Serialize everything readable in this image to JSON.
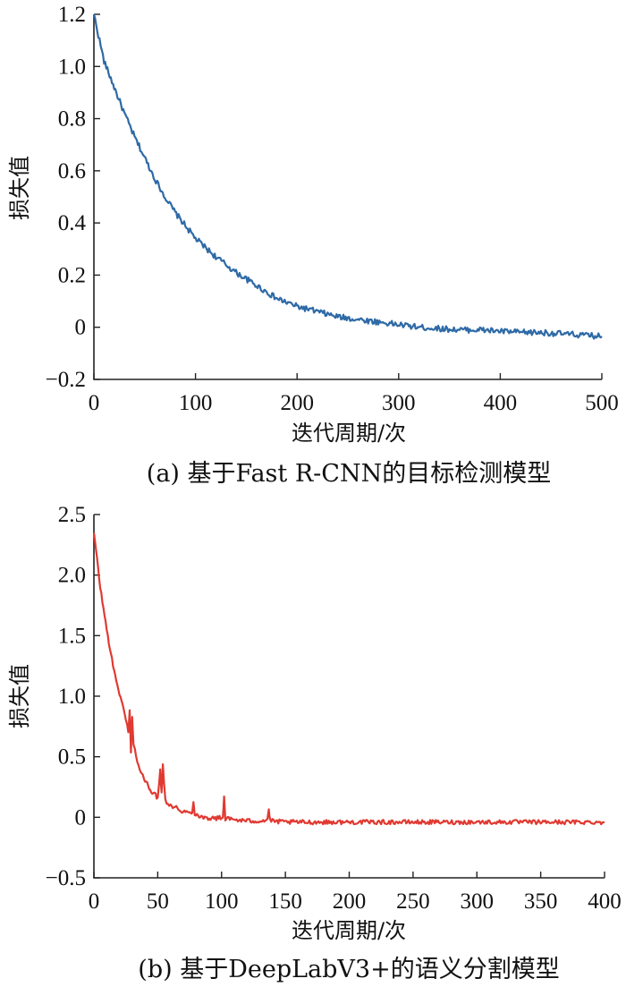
{
  "chart_data": [
    {
      "type": "line",
      "caption": "(a) 基于Fast R-CNN的目标检测模型",
      "xlabel": "迭代周期/次",
      "ylabel": "损失值",
      "xlim": [
        0,
        500
      ],
      "ylim": [
        -0.2,
        1.2
      ],
      "xticks": [
        "0",
        "100",
        "200",
        "300",
        "400",
        "500"
      ],
      "yticks": [
        "1.2",
        "1.0",
        "0.8",
        "0.6",
        "0.4",
        "0.2",
        "0",
        "−0.2"
      ],
      "grid": false,
      "series": [
        {
          "color": "#2e6aa6",
          "x": [
            0,
            10,
            20,
            30,
            40,
            50,
            60,
            70,
            80,
            90,
            100,
            120,
            140,
            160,
            180,
            200,
            220,
            240,
            260,
            280,
            300,
            320,
            340,
            360,
            380,
            400,
            420,
            440,
            460,
            480,
            500
          ],
          "y": [
            1.2,
            1.02,
            0.92,
            0.82,
            0.73,
            0.65,
            0.57,
            0.5,
            0.44,
            0.39,
            0.34,
            0.27,
            0.21,
            0.16,
            0.11,
            0.08,
            0.06,
            0.04,
            0.03,
            0.02,
            0.01,
            0.0,
            -0.005,
            -0.01,
            -0.01,
            -0.015,
            -0.02,
            -0.02,
            -0.025,
            -0.03,
            -0.035
          ]
        }
      ]
    },
    {
      "type": "line",
      "caption": "(b) 基于DeepLabV3+的语义分割模型",
      "xlabel": "迭代周期/次",
      "ylabel": "损失值",
      "xlim": [
        0,
        400
      ],
      "ylim": [
        -0.5,
        2.5
      ],
      "xticks": [
        "0",
        "50",
        "100",
        "150",
        "200",
        "250",
        "300",
        "350",
        "400"
      ],
      "yticks": [
        "2.5",
        "2.0",
        "1.5",
        "1.0",
        "0.5",
        "0",
        "−0.5"
      ],
      "grid": false,
      "series": [
        {
          "color": "#e03a32",
          "x": [
            0,
            5,
            10,
            15,
            20,
            25,
            27,
            28,
            29,
            30,
            31,
            35,
            40,
            45,
            50,
            52,
            53,
            54,
            56,
            60,
            70,
            77,
            78,
            79,
            85,
            95,
            101,
            102,
            103,
            110,
            120,
            130,
            136,
            137,
            138,
            150,
            175,
            200,
            225,
            250,
            275,
            300,
            325,
            350,
            375,
            400
          ],
          "y": [
            2.35,
            1.9,
            1.55,
            1.25,
            1.02,
            0.82,
            0.7,
            0.88,
            0.55,
            0.84,
            0.6,
            0.42,
            0.3,
            0.22,
            0.16,
            0.4,
            0.2,
            0.43,
            0.14,
            0.1,
            0.05,
            0.03,
            0.14,
            0.03,
            0.0,
            -0.01,
            0.0,
            0.17,
            -0.01,
            -0.02,
            -0.03,
            -0.03,
            -0.02,
            0.07,
            -0.03,
            -0.04,
            -0.04,
            -0.04,
            -0.04,
            -0.04,
            -0.04,
            -0.04,
            -0.04,
            -0.04,
            -0.04,
            -0.04
          ]
        }
      ]
    }
  ]
}
